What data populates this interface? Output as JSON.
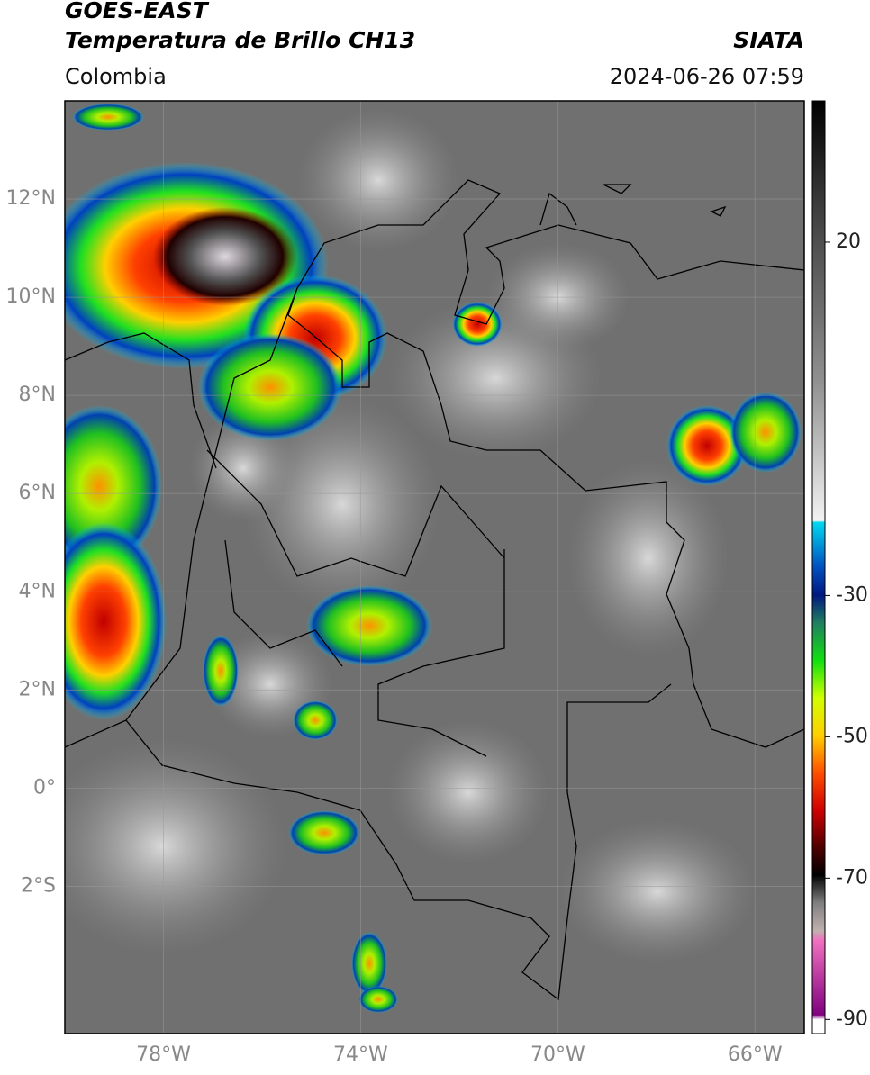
{
  "header": {
    "title": "GOES-EAST",
    "subtitle": "Temperatura de Brillo CH13",
    "source": "SIATA",
    "region": "Colombia",
    "datetime": "2024-06-26 07:59"
  },
  "map": {
    "lon_range": [
      -80,
      -65
    ],
    "lat_range": [
      -5,
      14
    ],
    "lon_ticks": [
      {
        "value": -78,
        "label": "78°W"
      },
      {
        "value": -74,
        "label": "74°W"
      },
      {
        "value": -70,
        "label": "70°W"
      },
      {
        "value": -66,
        "label": "66°W"
      }
    ],
    "lat_ticks": [
      {
        "value": 12,
        "label": "12°N"
      },
      {
        "value": 10,
        "label": "10°N"
      },
      {
        "value": 8,
        "label": "8°N"
      },
      {
        "value": 6,
        "label": "6°N"
      },
      {
        "value": 4,
        "label": "4°N"
      },
      {
        "value": 2,
        "label": "2°N"
      },
      {
        "value": 0,
        "label": "0°"
      },
      {
        "value": -2,
        "label": "2°S"
      }
    ]
  },
  "colorbar": {
    "range": [
      -92,
      40
    ],
    "ticks": [
      20,
      -30,
      -50,
      -70,
      -90
    ]
  }
}
